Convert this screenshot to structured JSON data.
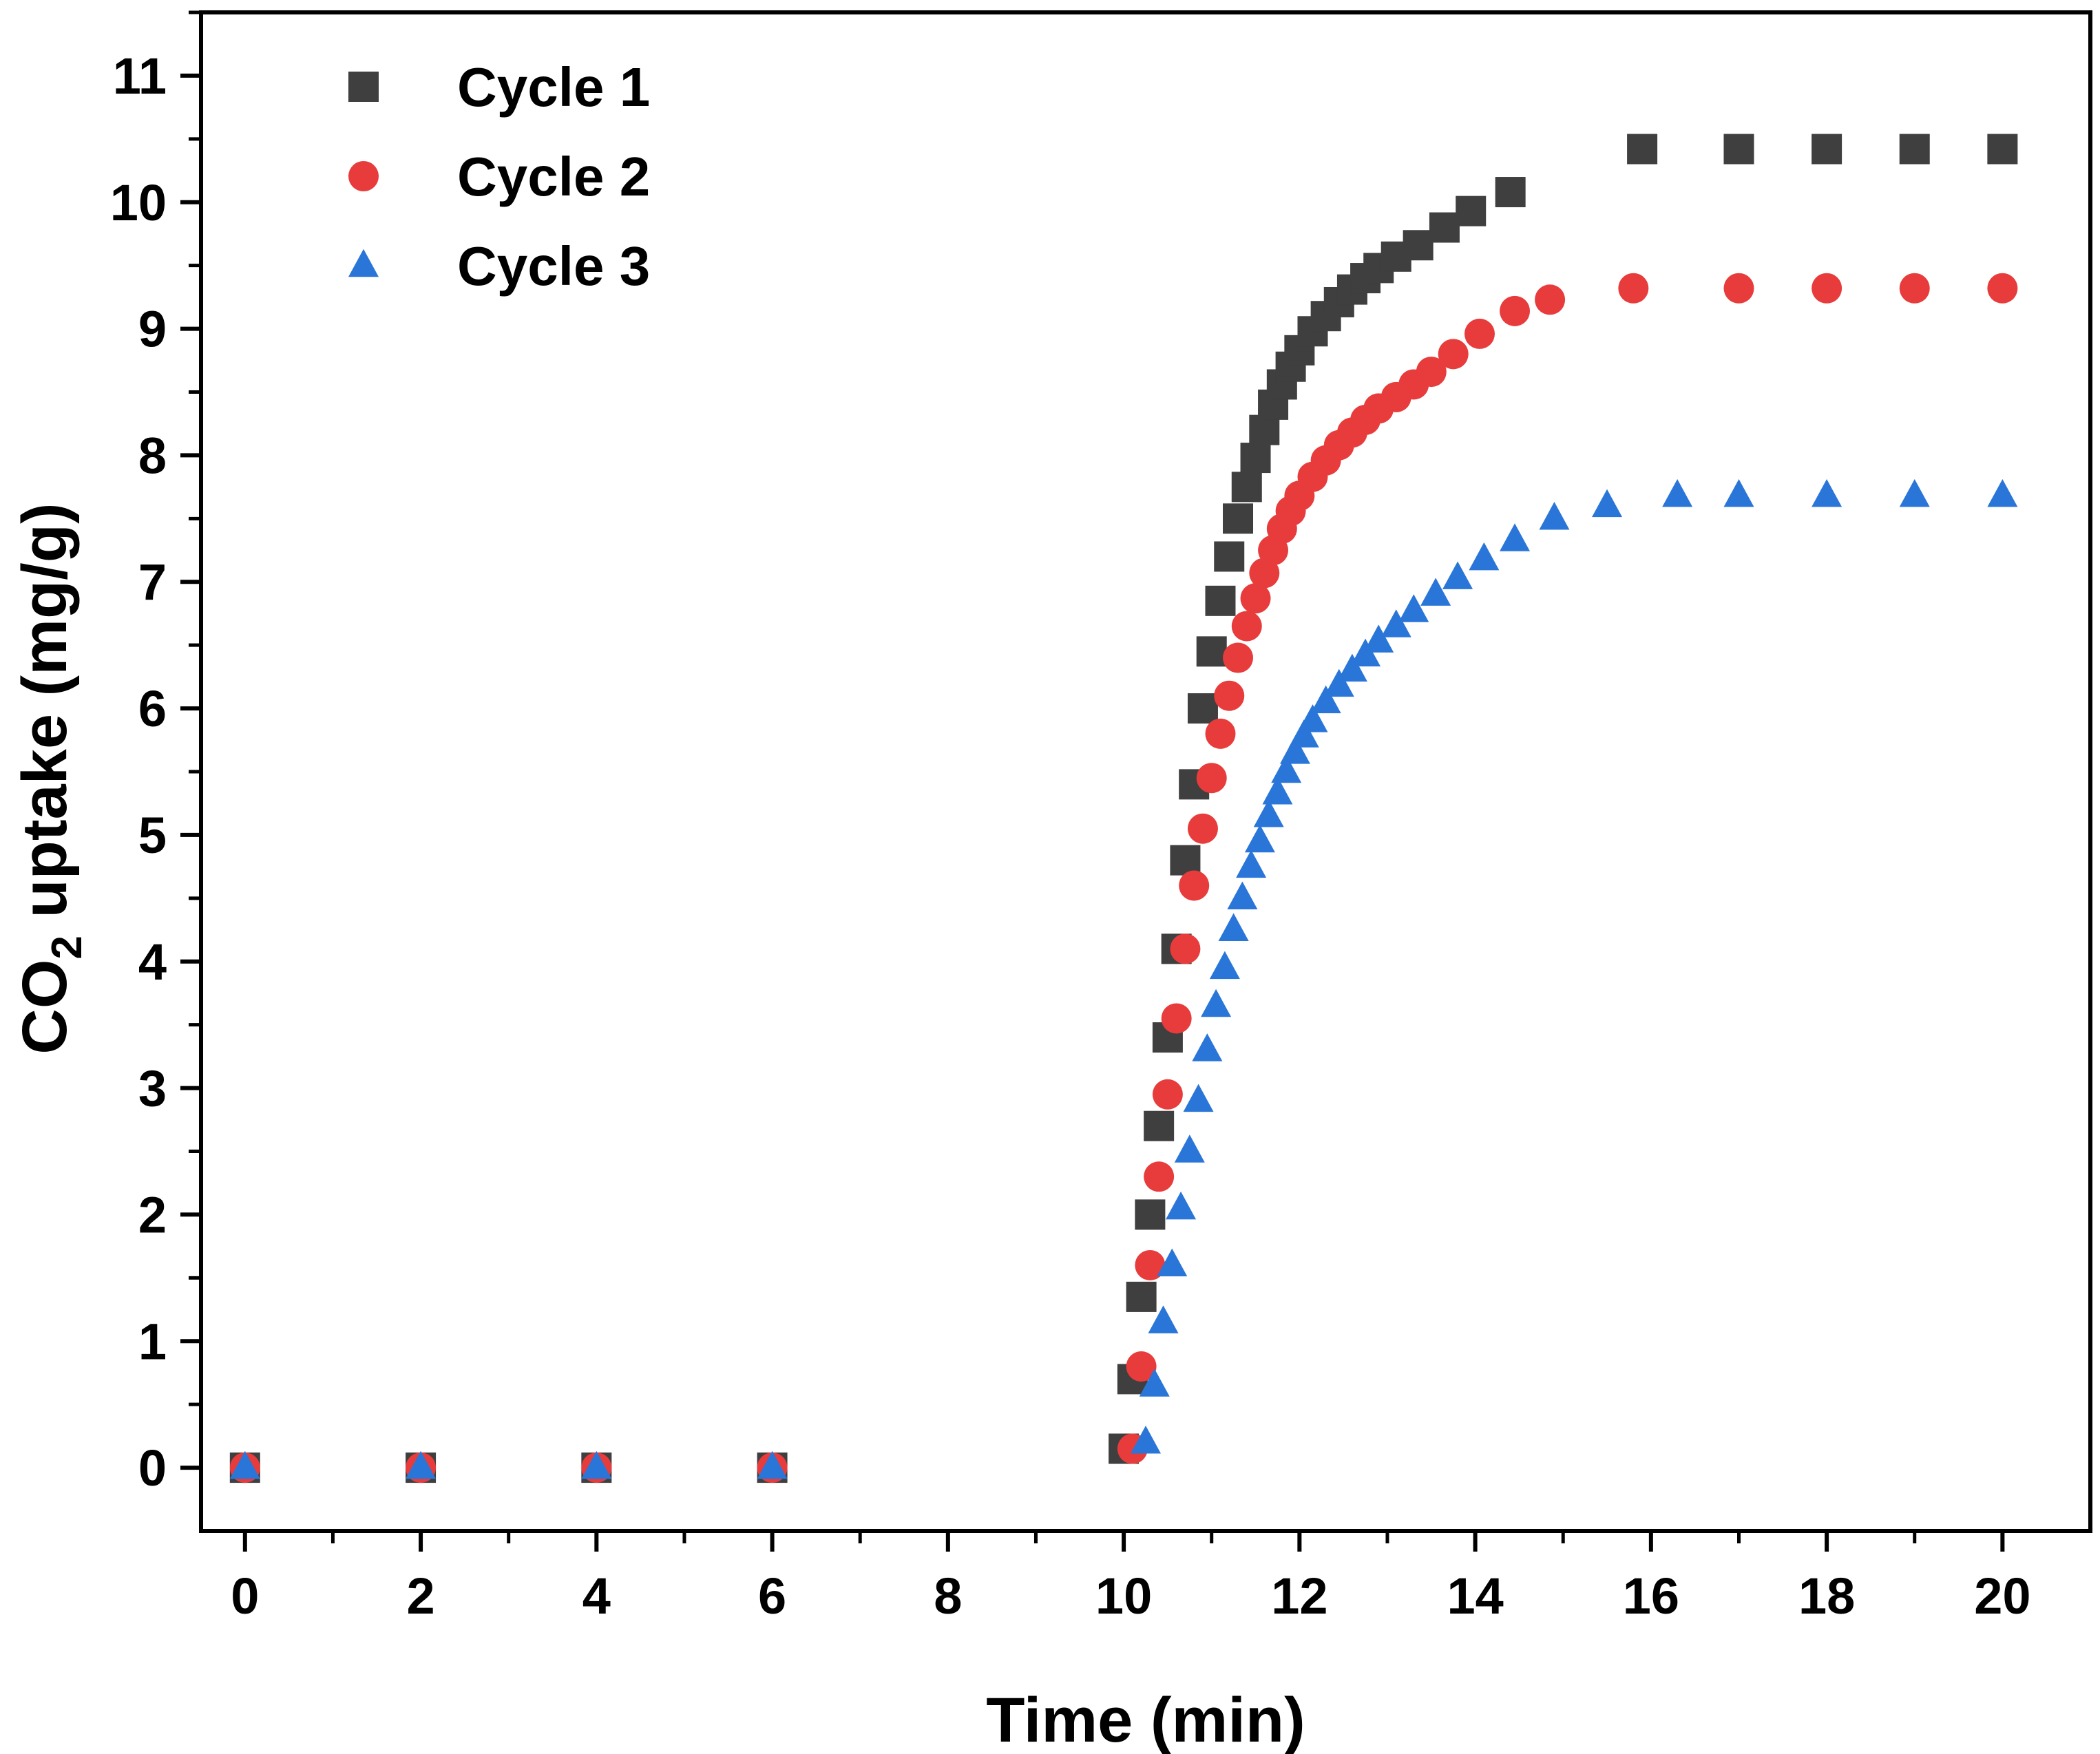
{
  "chart_data": {
    "type": "scatter",
    "title": "",
    "xlabel": "Time (min)",
    "ylabel": {
      "prefix": "CO",
      "subscript": "2",
      "suffix": " uptake (mg/g)"
    },
    "xlim": [
      -0.5,
      21
    ],
    "ylim": [
      -0.5,
      11.5
    ],
    "xticks": [
      0,
      2,
      4,
      6,
      8,
      10,
      12,
      14,
      16,
      18,
      20
    ],
    "yticks": [
      0,
      1,
      2,
      3,
      4,
      5,
      6,
      7,
      8,
      9,
      10,
      11
    ],
    "legend_position": "top-left",
    "series": [
      {
        "name": "Cycle 1",
        "marker": "square",
        "color": "#3f3f3f",
        "x": [
          0,
          2,
          4,
          6,
          10.0,
          10.1,
          10.2,
          10.3,
          10.4,
          10.5,
          10.6,
          10.7,
          10.8,
          10.9,
          11.0,
          11.1,
          11.2,
          11.3,
          11.4,
          11.5,
          11.6,
          11.7,
          11.8,
          11.9,
          12.0,
          12.15,
          12.3,
          12.45,
          12.6,
          12.75,
          12.9,
          13.1,
          13.35,
          13.65,
          13.95,
          14.4,
          15.9,
          17.0,
          18.0,
          19.0,
          20.0
        ],
        "y": [
          0,
          0,
          0,
          0,
          0.15,
          0.7,
          1.35,
          2.0,
          2.7,
          3.4,
          4.1,
          4.8,
          5.4,
          6.0,
          6.45,
          6.85,
          7.2,
          7.5,
          7.75,
          7.98,
          8.2,
          8.4,
          8.56,
          8.7,
          8.83,
          8.98,
          9.1,
          9.21,
          9.31,
          9.4,
          9.48,
          9.57,
          9.66,
          9.8,
          9.93,
          10.08,
          10.42,
          10.42,
          10.42,
          10.42,
          10.42
        ]
      },
      {
        "name": "Cycle 2",
        "marker": "circle",
        "color": "#e83b3b",
        "x": [
          0,
          2,
          4,
          6,
          10.1,
          10.2,
          10.3,
          10.4,
          10.5,
          10.6,
          10.7,
          10.8,
          10.9,
          11.0,
          11.1,
          11.2,
          11.3,
          11.4,
          11.5,
          11.6,
          11.7,
          11.8,
          11.9,
          12.0,
          12.15,
          12.3,
          12.45,
          12.6,
          12.75,
          12.9,
          13.1,
          13.3,
          13.5,
          13.75,
          14.05,
          14.45,
          14.85,
          15.8,
          17.0,
          18.0,
          19.0,
          20.0
        ],
        "y": [
          0,
          0,
          0,
          0,
          0.15,
          0.8,
          1.6,
          2.3,
          2.95,
          3.55,
          4.1,
          4.6,
          5.05,
          5.45,
          5.8,
          6.1,
          6.4,
          6.65,
          6.87,
          7.07,
          7.25,
          7.42,
          7.56,
          7.68,
          7.83,
          7.96,
          8.08,
          8.18,
          8.28,
          8.37,
          8.46,
          8.56,
          8.66,
          8.8,
          8.96,
          9.14,
          9.23,
          9.32,
          9.32,
          9.32,
          9.32,
          9.32
        ]
      },
      {
        "name": "Cycle 3",
        "marker": "triangle",
        "color": "#2a76d8",
        "x": [
          0,
          2,
          4,
          6,
          10.25,
          10.35,
          10.45,
          10.55,
          10.65,
          10.75,
          10.85,
          10.95,
          11.05,
          11.15,
          11.25,
          11.35,
          11.45,
          11.55,
          11.65,
          11.75,
          11.85,
          11.95,
          12.05,
          12.15,
          12.3,
          12.45,
          12.6,
          12.75,
          12.9,
          13.1,
          13.3,
          13.55,
          13.8,
          14.1,
          14.45,
          14.9,
          15.5,
          16.3,
          17.0,
          18.0,
          19.0,
          20.0
        ],
        "y": [
          0,
          0,
          0,
          0,
          0.2,
          0.65,
          1.15,
          1.6,
          2.05,
          2.5,
          2.9,
          3.3,
          3.65,
          3.95,
          4.25,
          4.5,
          4.75,
          4.95,
          5.15,
          5.33,
          5.5,
          5.65,
          5.78,
          5.9,
          6.05,
          6.18,
          6.3,
          6.42,
          6.53,
          6.65,
          6.77,
          6.9,
          7.03,
          7.18,
          7.33,
          7.5,
          7.6,
          7.68,
          7.68,
          7.68,
          7.68,
          7.68
        ]
      }
    ]
  }
}
